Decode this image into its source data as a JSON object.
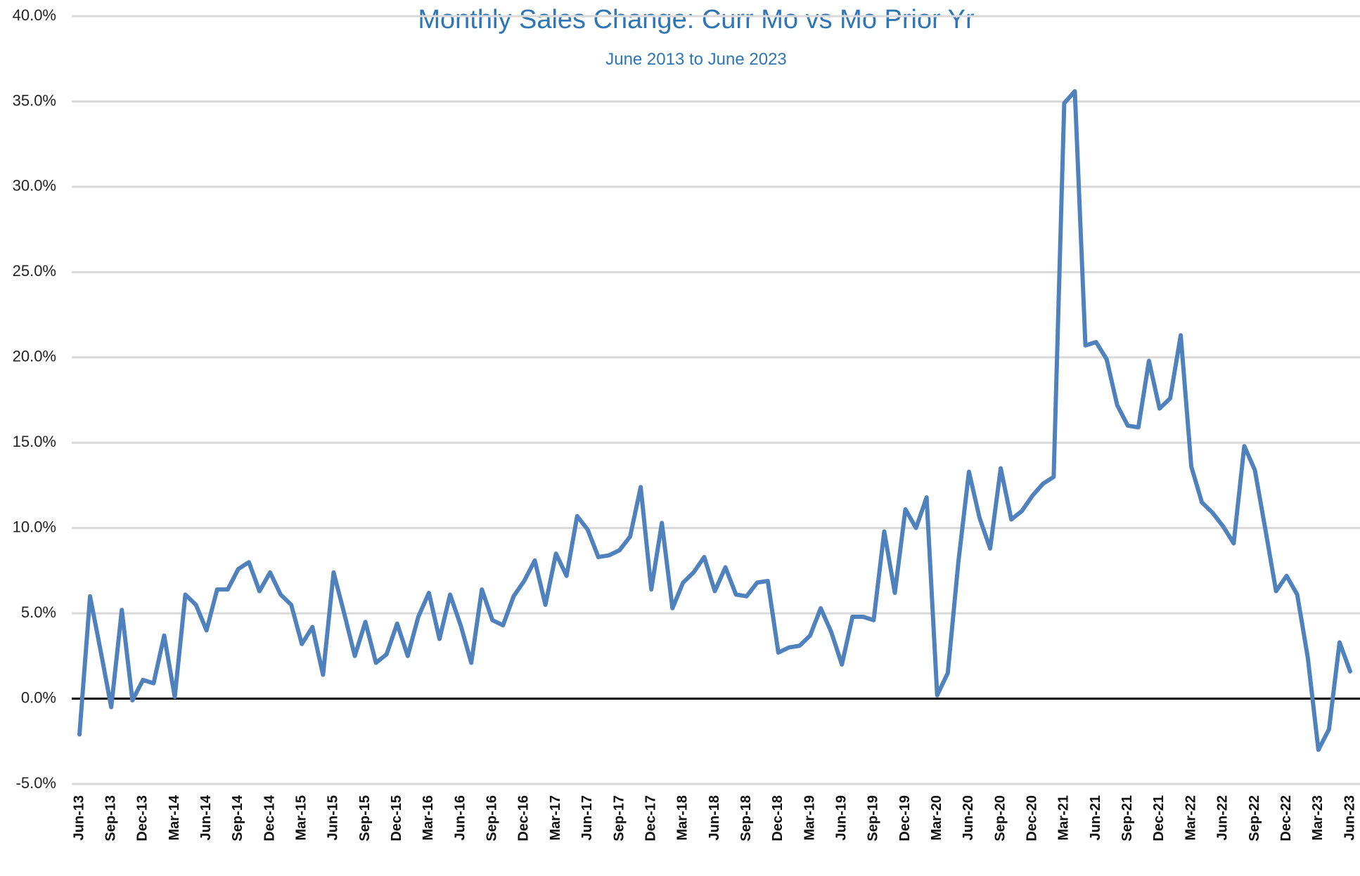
{
  "chart_data": {
    "type": "line",
    "title": "Monthly Sales Change: Curr Mo vs Mo Prior Yr",
    "subtitle": "June 2013 to June 2023",
    "categories": [
      "Jun-13",
      null,
      null,
      "Sep-13",
      null,
      null,
      "Dec-13",
      null,
      null,
      "Mar-14",
      null,
      null,
      "Jun-14",
      null,
      null,
      "Sep-14",
      null,
      null,
      "Dec-14",
      null,
      null,
      "Mar-15",
      null,
      null,
      "Jun-15",
      null,
      null,
      "Sep-15",
      null,
      null,
      "Dec-15",
      null,
      null,
      "Mar-16",
      null,
      null,
      "Jun-16",
      null,
      null,
      "Sep-16",
      null,
      null,
      "Dec-16",
      null,
      null,
      "Mar-17",
      null,
      null,
      "Jun-17",
      null,
      null,
      "Sep-17",
      null,
      null,
      "Dec-17",
      null,
      null,
      "Mar-18",
      null,
      null,
      "Jun-18",
      null,
      null,
      "Sep-18",
      null,
      null,
      "Dec-18",
      null,
      null,
      "Mar-19",
      null,
      null,
      "Jun-19",
      null,
      null,
      "Sep-19",
      null,
      null,
      "Dec-19",
      null,
      null,
      "Mar-20",
      null,
      null,
      "Jun-20",
      null,
      null,
      "Sep-20",
      null,
      null,
      "Dec-20",
      null,
      null,
      "Mar-21",
      null,
      null,
      "Jun-21",
      null,
      null,
      "Sep-21",
      null,
      null,
      "Dec-21",
      null,
      null,
      "Mar-22",
      null,
      null,
      "Jun-22",
      null,
      null,
      "Sep-22",
      null,
      null,
      "Dec-22",
      null,
      null,
      "Mar-23",
      null,
      null,
      "Jun-23"
    ],
    "series": [
      {
        "name": "Monthly Sales Change",
        "color": "#4f81bd",
        "values": [
          -2.1,
          6.0,
          2.8,
          -0.5,
          5.2,
          -0.1,
          1.1,
          0.9,
          3.7,
          0.1,
          6.1,
          5.5,
          4.0,
          6.4,
          6.4,
          7.6,
          8.0,
          6.3,
          7.4,
          6.1,
          5.5,
          3.2,
          4.2,
          1.4,
          7.4,
          5.0,
          2.5,
          4.5,
          2.1,
          2.6,
          4.4,
          2.5,
          4.8,
          6.2,
          3.5,
          6.1,
          4.3,
          2.1,
          6.4,
          4.6,
          4.3,
          6.0,
          6.9,
          8.1,
          5.5,
          8.5,
          7.2,
          10.7,
          9.9,
          8.3,
          8.4,
          8.7,
          9.5,
          12.4,
          6.4,
          10.3,
          5.3,
          6.8,
          7.4,
          8.3,
          6.3,
          7.7,
          6.1,
          6.0,
          6.8,
          6.9,
          2.7,
          3.0,
          3.1,
          3.7,
          5.3,
          3.9,
          2.0,
          4.8,
          4.8,
          4.6,
          9.8,
          6.2,
          11.1,
          10.0,
          11.8,
          0.2,
          1.5,
          8.0,
          13.3,
          10.6,
          8.8,
          13.5,
          10.5,
          11.0,
          11.9,
          12.6,
          13.0,
          34.9,
          35.6,
          20.7,
          20.9,
          19.9,
          17.2,
          16.0,
          15.9,
          19.8,
          17.0,
          17.6,
          21.3,
          13.6,
          11.5,
          10.9,
          10.1,
          9.1,
          14.8,
          13.4,
          9.9,
          6.3,
          7.2,
          6.1,
          2.4,
          -3.0,
          -1.8,
          3.3,
          1.6
        ]
      }
    ],
    "ylim": [
      -5,
      40
    ],
    "yticks": [
      {
        "value": -5,
        "label": "-5.0%"
      },
      {
        "value": 0,
        "label": "0.0%"
      },
      {
        "value": 5,
        "label": "5.0%"
      },
      {
        "value": 10,
        "label": "10.0%"
      },
      {
        "value": 15,
        "label": "15.0%"
      },
      {
        "value": 20,
        "label": "20.0%"
      },
      {
        "value": 25,
        "label": "25.0%"
      },
      {
        "value": 30,
        "label": "30.0%"
      },
      {
        "value": 35,
        "label": "35.0%"
      },
      {
        "value": 40,
        "label": "40.0%"
      }
    ],
    "grid": true
  }
}
